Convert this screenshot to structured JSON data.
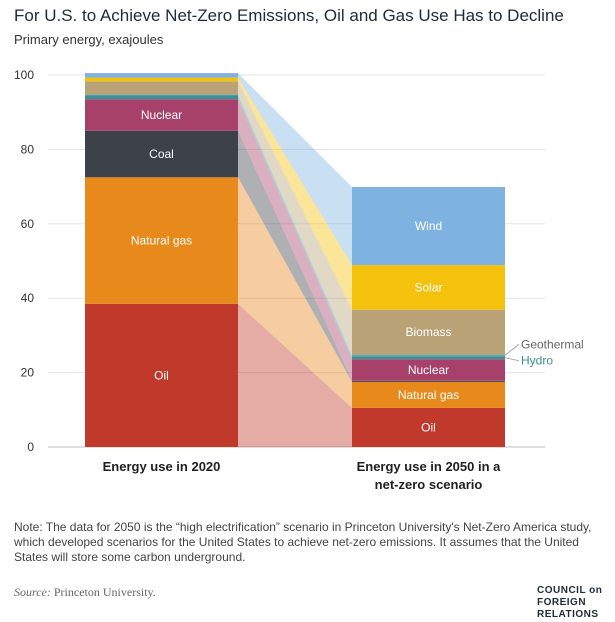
{
  "header": {
    "title": "For U.S. to Achieve Net-Zero Emissions, Oil and Gas Use Has to Decline",
    "subtitle": "Primary energy, exajoules"
  },
  "footer": {
    "note": "Note: The data for 2050 is the “high electrification” scenario in Princeton University's Net-Zero America study, which developed scenarios for the United States to achieve net-zero emissions. It assumes that the United States will store some carbon underground.",
    "source_label": "Source:",
    "source_text": "Princeton University.",
    "logo_lines": [
      "COUNCIL on",
      "FOREIGN",
      "RELATIONS"
    ]
  },
  "chart_data": {
    "type": "bar",
    "stacked": true,
    "title": "For U.S. to Achieve Net-Zero Emissions, Oil and Gas Use Has to Decline",
    "ylabel": "Primary energy, exajoules",
    "ylim": [
      0,
      100
    ],
    "yticks": [
      0,
      20,
      40,
      60,
      80,
      100
    ],
    "grid": true,
    "categories": [
      "Energy use in 2020",
      "Energy use in 2050 in a net-zero scenario"
    ],
    "series": [
      {
        "name": "Oil",
        "color": "#c0392b",
        "values": [
          38.5,
          10.5
        ],
        "label_in_bar": [
          true,
          true
        ]
      },
      {
        "name": "Natural gas",
        "color": "#e8891c",
        "values": [
          34.0,
          7.0
        ],
        "label_in_bar": [
          true,
          true
        ]
      },
      {
        "name": "Coal",
        "color": "#3d4249",
        "values": [
          12.5,
          0.3
        ],
        "label_in_bar": [
          true,
          false
        ]
      },
      {
        "name": "Nuclear",
        "color": "#a8416a",
        "values": [
          8.5,
          5.8
        ],
        "label_in_bar": [
          true,
          true
        ]
      },
      {
        "name": "Hydro",
        "color": "#3c8f94",
        "values": [
          1.0,
          0.8
        ],
        "label_in_bar": [
          false,
          false
        ]
      },
      {
        "name": "Geothermal",
        "color": "#6da5a0",
        "values": [
          0.3,
          0.5
        ],
        "label_in_bar": [
          false,
          false
        ]
      },
      {
        "name": "Biomass",
        "color": "#b8a276",
        "values": [
          3.5,
          12.0
        ],
        "label_in_bar": [
          false,
          true
        ]
      },
      {
        "name": "Solar",
        "color": "#f4c20d",
        "values": [
          1.0,
          12.0
        ],
        "label_in_bar": [
          false,
          true
        ]
      },
      {
        "name": "Wind",
        "color": "#7eb2e0",
        "values": [
          1.2,
          21.0
        ],
        "label_in_bar": [
          false,
          true
        ]
      }
    ],
    "side_labels": [
      {
        "series": "Geothermal",
        "color": "#666666"
      },
      {
        "series": "Hydro",
        "color": "#3c8f94"
      }
    ],
    "x_labels": [
      [
        "Energy use in 2020"
      ],
      [
        "Energy use in 2050 in a",
        "net-zero scenario"
      ]
    ]
  }
}
